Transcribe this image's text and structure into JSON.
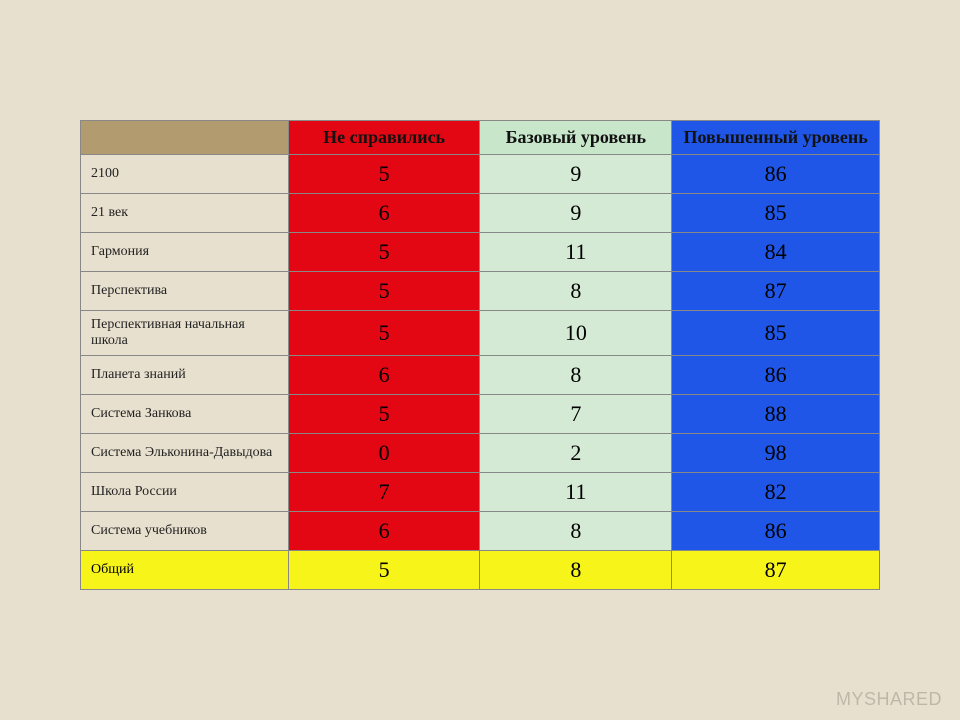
{
  "watermark": "MYSHARED",
  "table": {
    "type": "table",
    "background_color": "#e8e0ce",
    "border_color": "#888888",
    "columns": [
      {
        "key": "label",
        "header": "",
        "header_bg": "#b19b6f",
        "cell_bg": "#e8e0ce",
        "align": "left",
        "width_pct": 26,
        "header_fontsize": 18,
        "cell_fontsize": 14
      },
      {
        "key": "fail",
        "header": "Не справились",
        "header_bg": "#e30613",
        "cell_bg": "#e30613",
        "align": "center",
        "width_pct": 24,
        "header_fontsize": 18,
        "cell_fontsize": 22
      },
      {
        "key": "base",
        "header": "Базовый уровень",
        "header_bg": "#c8e6c9",
        "cell_bg": "#d4ead5",
        "align": "center",
        "width_pct": 24,
        "header_fontsize": 18,
        "cell_fontsize": 22
      },
      {
        "key": "high",
        "header": "Повышенный уровень",
        "header_bg": "#1f56e8",
        "cell_bg": "#1f56e8",
        "align": "center",
        "width_pct": 26,
        "header_fontsize": 18,
        "cell_fontsize": 22
      }
    ],
    "rows": [
      {
        "label": "2100",
        "fail": 5,
        "base": 9,
        "high": 86
      },
      {
        "label": "21 век",
        "fail": 6,
        "base": 9,
        "high": 85
      },
      {
        "label": "Гармония",
        "fail": 5,
        "base": 11,
        "high": 84
      },
      {
        "label": "Перспектива",
        "fail": 5,
        "base": 8,
        "high": 87
      },
      {
        "label": "Перспективная начальная школа",
        "fail": 5,
        "base": 10,
        "high": 85
      },
      {
        "label": "Планета знаний",
        "fail": 6,
        "base": 8,
        "high": 86
      },
      {
        "label": "Система Занкова",
        "fail": 5,
        "base": 7,
        "high": 88
      },
      {
        "label": "Система Эльконина-Давыдова",
        "fail": 0,
        "base": 2,
        "high": 98
      },
      {
        "label": "Школа России",
        "fail": 7,
        "base": 11,
        "high": 82
      },
      {
        "label": "Система учебников",
        "fail": 6,
        "base": 8,
        "high": 86
      }
    ],
    "total_row": {
      "label": "Общий",
      "fail": 5,
      "base": 8,
      "high": 87,
      "bg": "#f7f41a"
    }
  }
}
